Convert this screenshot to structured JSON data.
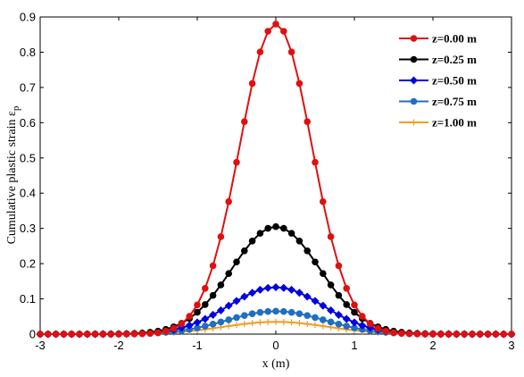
{
  "chart_data": {
    "type": "line",
    "xlabel": "x (m)",
    "ylabel": "Cumulative plastic strain ε",
    "ylabel_sub": "p",
    "xlim": [
      -3,
      3
    ],
    "ylim": [
      0,
      0.9
    ],
    "xticks": [
      -3,
      -2,
      -1,
      0,
      1,
      2,
      3
    ],
    "yticks": [
      0,
      0.1,
      0.2,
      0.3,
      0.4,
      0.5,
      0.6,
      0.7,
      0.8,
      0.9
    ],
    "x_step": 0.1,
    "grid": false,
    "legend_position": "top-right",
    "series": [
      {
        "name": "z=0.00 m",
        "peak": 0.88,
        "sigma": 0.46,
        "color": "#e01010",
        "marker": "circle"
      },
      {
        "name": "z=0.25 m",
        "peak": 0.305,
        "sigma": 0.56,
        "color": "#000000",
        "marker": "circle"
      },
      {
        "name": "z=0.50 m",
        "peak": 0.133,
        "sigma": 0.6,
        "color": "#0000e0",
        "marker": "diamond"
      },
      {
        "name": "z=0.75 m",
        "peak": 0.065,
        "sigma": 0.62,
        "color": "#1f6fc0",
        "marker": "circle"
      },
      {
        "name": "z=1.00 m",
        "peak": 0.035,
        "sigma": 0.65,
        "color": "#f39c20",
        "marker": "plus"
      }
    ]
  }
}
